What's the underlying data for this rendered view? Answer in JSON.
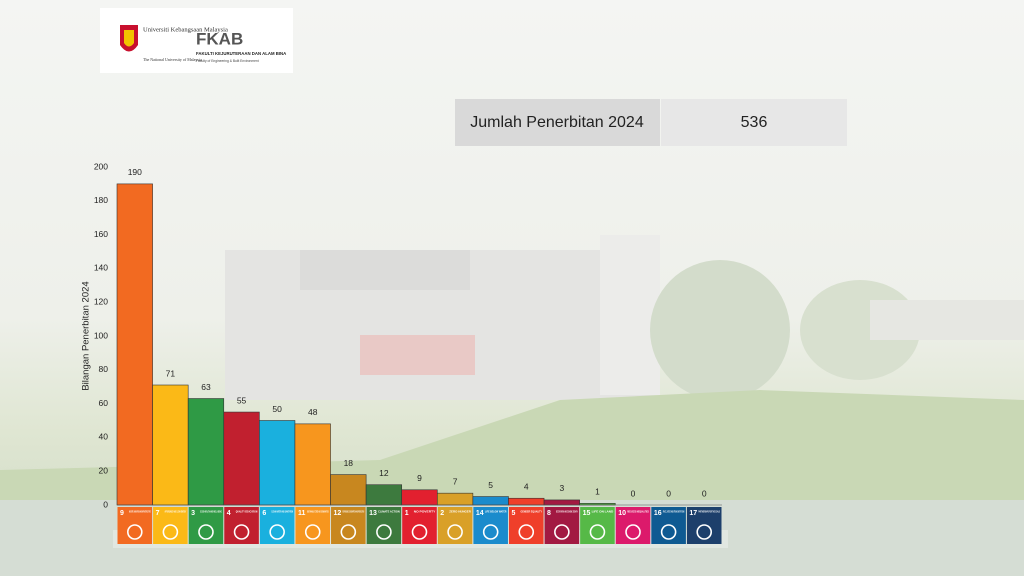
{
  "logo": {
    "university": "Universiti Kebangsaan Malaysia",
    "university_en": "The National University of Malaysia",
    "faculty_short": "FKAB",
    "faculty": "FAKULTI KEJURUTERAAN DAN ALAM BINA",
    "faculty_en": "Faculty of Engineering & Built Environment"
  },
  "summary": {
    "label": "Jumlah Penerbitan 2024",
    "value": 536
  },
  "chart_data": {
    "type": "bar",
    "y_label": "Bilangan Penerbitan 2024",
    "categories": [
      "9",
      "7",
      "3",
      "4",
      "6",
      "11",
      "12",
      "13",
      "1",
      "2",
      "14",
      "5",
      "8",
      "15",
      "10",
      "16",
      "17"
    ],
    "category_names": [
      "INDUSTRY, INNOVATION AND INFRASTRUCTURE",
      "AFFORDABLE AND CLEAN ENERGY",
      "GOOD HEALTH AND WELL-BEING",
      "QUALITY EDUCATION",
      "CLEAN WATER AND SANITATION",
      "SUSTAINABLE CITIES AND COMMUNITIES",
      "RESPONSIBLE CONSUMPTION AND PRODUCTION",
      "CLIMATE ACTION",
      "NO POVERTY",
      "ZERO HUNGER",
      "LIFE BELOW WATER",
      "GENDER EQUALITY",
      "DECENT WORK AND ECONOMIC GROWTH",
      "LIFE ON LAND",
      "REDUCED INEQUALITIES",
      "PEACE, JUSTICE AND STRONG INSTITUTIONS",
      "PARTNERSHIPS FOR THE GOALS"
    ],
    "values": [
      190,
      71,
      63,
      55,
      50,
      48,
      18,
      12,
      9,
      7,
      5,
      4,
      3,
      1,
      0,
      0,
      0
    ],
    "colors": [
      "#f26a21",
      "#fbb917",
      "#2f9a45",
      "#c1202f",
      "#1ab0de",
      "#f7961e",
      "#c8871f",
      "#3d7a3e",
      "#e2202f",
      "#d9a028",
      "#1b8bcc",
      "#ef3f2a",
      "#a21942",
      "#56b947",
      "#dc1a6b",
      "#0f5a92",
      "#1d3f6b"
    ],
    "ylim": [
      0,
      200
    ],
    "yticks": [
      0,
      20,
      40,
      60,
      80,
      100,
      120,
      140,
      160,
      180,
      200
    ]
  }
}
